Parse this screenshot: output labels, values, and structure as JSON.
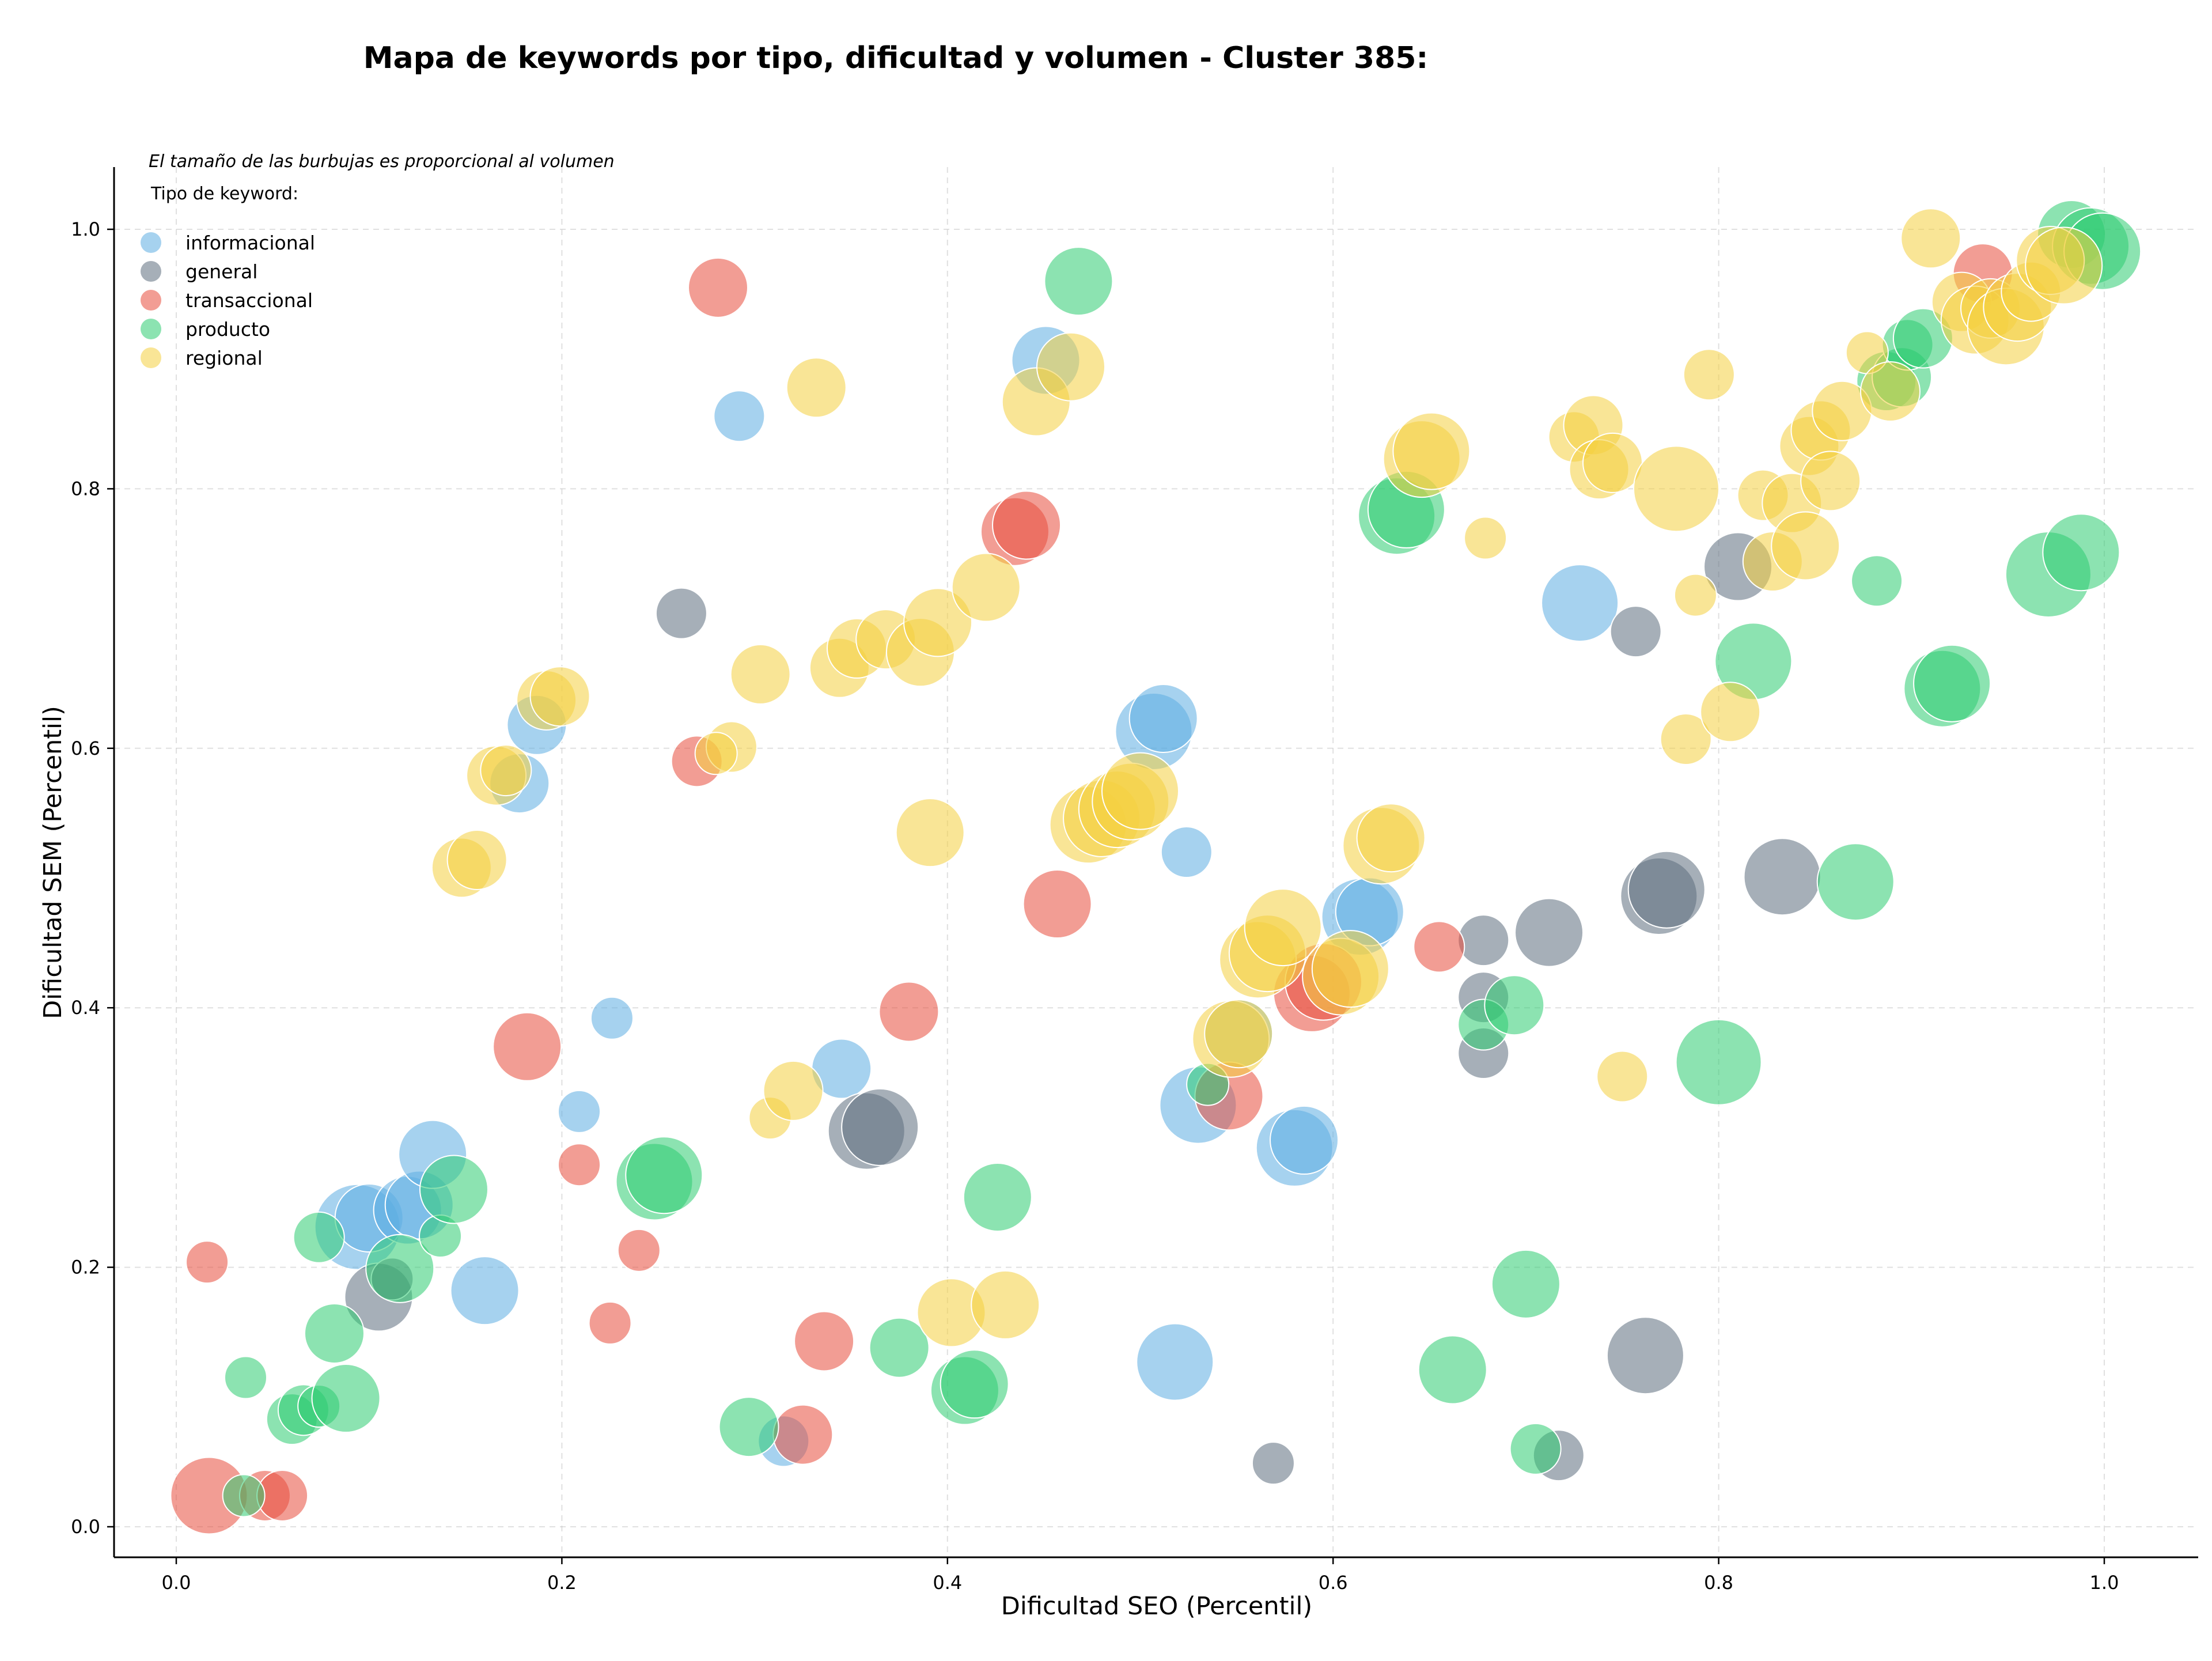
{
  "chart_data": {
    "type": "scatter",
    "title": "Mapa de keywords por tipo, dificultad y volumen - Cluster 385:",
    "xlabel": "Dificultad SEO (Percentil)",
    "ylabel": "Dificultad SEM (Percentil)",
    "xlim": [
      -0.03,
      1.04
    ],
    "ylim": [
      -0.02,
      1.05
    ],
    "xticks": [
      "0.0",
      "0.2",
      "0.4",
      "0.6",
      "0.8",
      "1.0"
    ],
    "yticks": [
      "0.0",
      "0.2",
      "0.4",
      "0.6",
      "0.8",
      "1.0"
    ],
    "grid": true,
    "legend_position": "top-left",
    "legend_note": "El tamaño de las burbujas es proporcional al volumen",
    "legend_title": "Tipo de keyword:",
    "series": [
      {
        "name": "informacional",
        "color": "#5dade2",
        "points": [
          [
            0.292,
            0.856,
            4
          ],
          [
            0.226,
            0.392,
            3
          ],
          [
            0.209,
            0.32,
            3
          ],
          [
            0.345,
            0.353,
            5
          ],
          [
            0.315,
            0.066,
            4
          ],
          [
            0.094,
            0.231,
            8
          ],
          [
            0.1,
            0.238,
            6
          ],
          [
            0.12,
            0.244,
            6
          ],
          [
            0.126,
            0.248,
            6
          ],
          [
            0.133,
            0.287,
            6
          ],
          [
            0.16,
            0.182,
            6
          ],
          [
            0.178,
            0.573,
            5
          ],
          [
            0.187,
            0.618,
            5
          ],
          [
            0.451,
            0.899,
            6
          ],
          [
            0.507,
            0.613,
            7
          ],
          [
            0.512,
            0.623,
            6
          ],
          [
            0.524,
            0.52,
            4
          ],
          [
            0.518,
            0.127,
            7
          ],
          [
            0.53,
            0.325,
            7
          ],
          [
            0.551,
            0.38,
            6
          ],
          [
            0.58,
            0.292,
            7
          ],
          [
            0.585,
            0.298,
            6
          ],
          [
            0.614,
            0.47,
            7
          ],
          [
            0.619,
            0.474,
            6
          ],
          [
            0.728,
            0.712,
            7
          ]
        ]
      },
      {
        "name": "general",
        "color": "#5d6d7e",
        "points": [
          [
            0.262,
            0.704,
            4
          ],
          [
            0.105,
            0.177,
            6
          ],
          [
            0.112,
            0.191,
            3
          ],
          [
            0.358,
            0.305,
            7
          ],
          [
            0.365,
            0.308,
            7
          ],
          [
            0.569,
            0.049,
            3
          ],
          [
            0.678,
            0.452,
            4
          ],
          [
            0.678,
            0.408,
            4
          ],
          [
            0.678,
            0.365,
            4
          ],
          [
            0.712,
            0.458,
            6
          ],
          [
            0.717,
            0.055,
            4
          ],
          [
            0.757,
            0.69,
            4
          ],
          [
            0.762,
            0.132,
            7
          ],
          [
            0.769,
            0.486,
            7
          ],
          [
            0.773,
            0.491,
            7
          ],
          [
            0.81,
            0.74,
            6
          ],
          [
            0.833,
            0.501,
            7
          ]
        ]
      },
      {
        "name": "transaccional",
        "color": "#e74c3c",
        "points": [
          [
            0.281,
            0.955,
            5
          ],
          [
            0.016,
            0.204,
            3
          ],
          [
            0.017,
            0.024,
            7
          ],
          [
            0.046,
            0.024,
            4
          ],
          [
            0.055,
            0.024,
            4
          ],
          [
            0.182,
            0.37,
            6
          ],
          [
            0.209,
            0.279,
            3
          ],
          [
            0.225,
            0.157,
            3
          ],
          [
            0.24,
            0.213,
            3
          ],
          [
            0.27,
            0.59,
            4
          ],
          [
            0.325,
            0.071,
            5
          ],
          [
            0.336,
            0.143,
            5
          ],
          [
            0.38,
            0.397,
            5
          ],
          [
            0.435,
            0.767,
            6
          ],
          [
            0.441,
            0.772,
            6
          ],
          [
            0.457,
            0.48,
            6
          ],
          [
            0.546,
            0.332,
            6
          ],
          [
            0.589,
            0.411,
            7
          ],
          [
            0.595,
            0.42,
            7
          ],
          [
            0.655,
            0.447,
            4
          ],
          [
            0.937,
            0.966,
            5
          ]
        ]
      },
      {
        "name": "producto",
        "color": "#2ecc71",
        "points": [
          [
            0.468,
            0.96,
            6
          ],
          [
            0.036,
            0.115,
            3
          ],
          [
            0.035,
            0.024,
            3
          ],
          [
            0.06,
            0.083,
            4
          ],
          [
            0.066,
            0.09,
            4
          ],
          [
            0.074,
            0.093,
            3
          ],
          [
            0.074,
            0.223,
            4
          ],
          [
            0.082,
            0.149,
            5
          ],
          [
            0.088,
            0.099,
            6
          ],
          [
            0.116,
            0.199,
            6
          ],
          [
            0.137,
            0.224,
            3
          ],
          [
            0.144,
            0.26,
            6
          ],
          [
            0.248,
            0.266,
            7
          ],
          [
            0.253,
            0.271,
            7
          ],
          [
            0.297,
            0.077,
            5
          ],
          [
            0.375,
            0.138,
            5
          ],
          [
            0.409,
            0.105,
            6
          ],
          [
            0.414,
            0.11,
            6
          ],
          [
            0.426,
            0.254,
            6
          ],
          [
            0.535,
            0.341,
            3
          ],
          [
            0.633,
            0.779,
            7
          ],
          [
            0.638,
            0.784,
            7
          ],
          [
            0.662,
            0.121,
            6
          ],
          [
            0.678,
            0.387,
            4
          ],
          [
            0.694,
            0.402,
            5
          ],
          [
            0.7,
            0.187,
            6
          ],
          [
            0.705,
            0.06,
            4
          ],
          [
            0.8,
            0.358,
            8
          ],
          [
            0.818,
            0.667,
            7
          ],
          [
            0.871,
            0.497,
            7
          ],
          [
            0.882,
            0.729,
            4
          ],
          [
            0.887,
            0.883,
            5
          ],
          [
            0.895,
            0.886,
            5
          ],
          [
            0.898,
            0.911,
            4
          ],
          [
            0.906,
            0.916,
            5
          ],
          [
            0.916,
            0.646,
            7
          ],
          [
            0.921,
            0.65,
            7
          ],
          [
            0.971,
            0.734,
            8
          ],
          [
            0.983,
            0.996,
            6
          ],
          [
            0.988,
            0.751,
            7
          ],
          [
            0.993,
            0.987,
            7
          ],
          [
            0.999,
            0.983,
            7
          ]
        ]
      },
      {
        "name": "regional",
        "color": "#f4d03f",
        "points": [
          [
            0.332,
            0.878,
            5
          ],
          [
            0.303,
            0.657,
            5
          ],
          [
            0.288,
            0.601,
            4
          ],
          [
            0.28,
            0.596,
            3
          ],
          [
            0.148,
            0.508,
            5
          ],
          [
            0.156,
            0.514,
            5
          ],
          [
            0.166,
            0.579,
            5
          ],
          [
            0.171,
            0.583,
            4
          ],
          [
            0.192,
            0.637,
            5
          ],
          [
            0.199,
            0.64,
            5
          ],
          [
            0.308,
            0.315,
            3
          ],
          [
            0.32,
            0.336,
            5
          ],
          [
            0.344,
            0.662,
            5
          ],
          [
            0.353,
            0.677,
            5
          ],
          [
            0.368,
            0.684,
            5
          ],
          [
            0.386,
            0.674,
            6
          ],
          [
            0.395,
            0.697,
            6
          ],
          [
            0.391,
            0.535,
            6
          ],
          [
            0.42,
            0.724,
            6
          ],
          [
            0.402,
            0.165,
            6
          ],
          [
            0.43,
            0.171,
            6
          ],
          [
            0.446,
            0.867,
            6
          ],
          [
            0.464,
            0.894,
            6
          ],
          [
            0.473,
            0.541,
            7
          ],
          [
            0.48,
            0.546,
            7
          ],
          [
            0.488,
            0.553,
            7
          ],
          [
            0.495,
            0.559,
            7
          ],
          [
            0.5,
            0.567,
            7
          ],
          [
            0.547,
            0.376,
            7
          ],
          [
            0.551,
            0.38,
            6
          ],
          [
            0.561,
            0.437,
            7
          ],
          [
            0.566,
            0.442,
            7
          ],
          [
            0.574,
            0.462,
            7
          ],
          [
            0.604,
            0.424,
            7
          ],
          [
            0.609,
            0.43,
            7
          ],
          [
            0.625,
            0.525,
            7
          ],
          [
            0.63,
            0.531,
            6
          ],
          [
            0.646,
            0.823,
            7
          ],
          [
            0.651,
            0.829,
            7
          ],
          [
            0.679,
            0.762,
            3
          ],
          [
            0.725,
            0.84,
            4
          ],
          [
            0.735,
            0.849,
            5
          ],
          [
            0.738,
            0.815,
            5
          ],
          [
            0.745,
            0.82,
            5
          ],
          [
            0.75,
            0.347,
            4
          ],
          [
            0.778,
            0.8,
            8
          ],
          [
            0.783,
            0.607,
            4
          ],
          [
            0.788,
            0.718,
            3
          ],
          [
            0.795,
            0.888,
            4
          ],
          [
            0.806,
            0.628,
            5
          ],
          [
            0.823,
            0.795,
            4
          ],
          [
            0.828,
            0.744,
            5
          ],
          [
            0.838,
            0.789,
            5
          ],
          [
            0.845,
            0.756,
            6
          ],
          [
            0.847,
            0.833,
            5
          ],
          [
            0.853,
            0.845,
            5
          ],
          [
            0.858,
            0.806,
            5
          ],
          [
            0.864,
            0.86,
            5
          ],
          [
            0.877,
            0.905,
            3
          ],
          [
            0.889,
            0.875,
            5
          ],
          [
            0.91,
            0.993,
            5
          ],
          [
            0.926,
            0.944,
            5
          ],
          [
            0.933,
            0.93,
            6
          ],
          [
            0.941,
            0.939,
            5
          ],
          [
            0.949,
            0.925,
            7
          ],
          [
            0.955,
            0.94,
            6
          ],
          [
            0.962,
            0.952,
            5
          ],
          [
            0.972,
            0.976,
            6
          ],
          [
            0.979,
            0.972,
            7
          ]
        ]
      }
    ]
  }
}
